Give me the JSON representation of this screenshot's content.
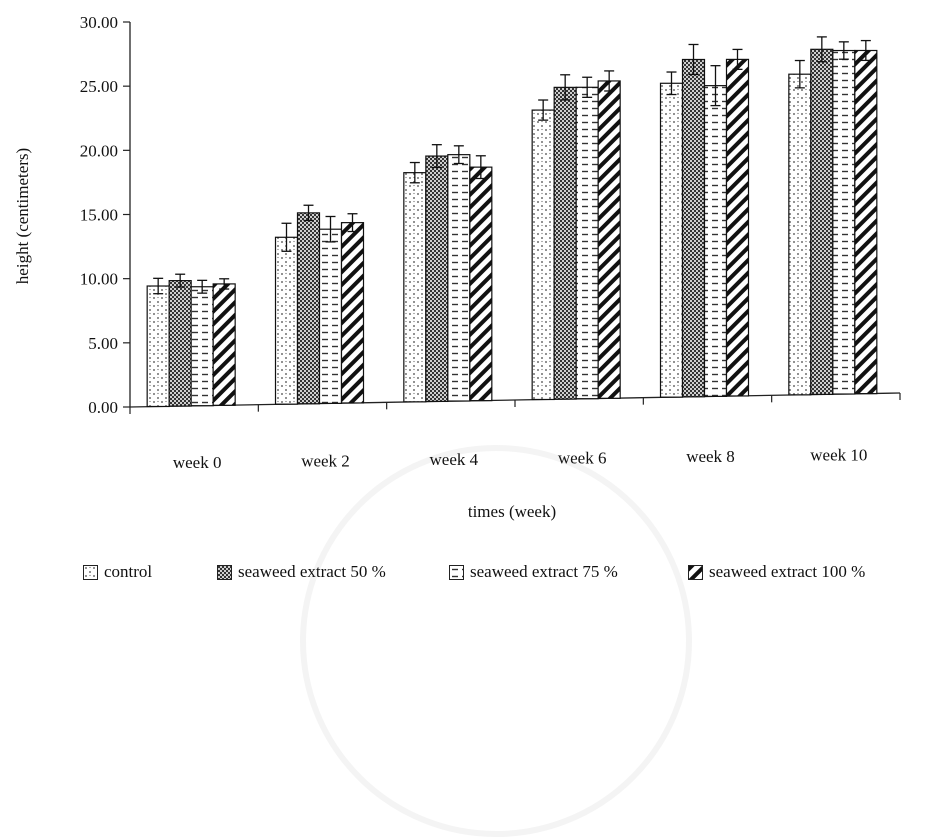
{
  "chart_data": {
    "type": "bar",
    "title": "",
    "xlabel": "times (week)",
    "ylabel": "height (centimeters)",
    "ylim": [
      0,
      30
    ],
    "yticks": [
      "0.00",
      "5.00",
      "10.00",
      "15.00",
      "20.00",
      "25.00",
      "30.00"
    ],
    "categories": [
      "week 0",
      "week 2",
      "week 4",
      "week 6",
      "week 8",
      "week 10"
    ],
    "series": [
      {
        "name": "control",
        "values": [
          9.4,
          13.1,
          18.1,
          23.0,
          25.1,
          25.8
        ],
        "errors": [
          0.6,
          1.1,
          0.8,
          0.8,
          0.9,
          1.1
        ],
        "pattern": "dots",
        "color": "#555555"
      },
      {
        "name": "seaweed extract 50 %",
        "values": [
          9.8,
          15.0,
          19.4,
          24.8,
          27.0,
          27.8
        ],
        "errors": [
          0.5,
          0.6,
          0.9,
          1.0,
          1.2,
          1.0
        ],
        "pattern": "checker",
        "color": "#333333"
      },
      {
        "name": "seaweed extract 75 %",
        "values": [
          9.3,
          13.7,
          19.5,
          24.8,
          24.9,
          27.7
        ],
        "errors": [
          0.5,
          1.0,
          0.7,
          0.8,
          1.6,
          0.7
        ],
        "pattern": "dashes",
        "color": "#333333"
      },
      {
        "name": "seaweed extract 100 %",
        "values": [
          9.5,
          14.2,
          18.5,
          25.3,
          27.0,
          27.7
        ],
        "errors": [
          0.4,
          0.7,
          0.9,
          0.8,
          0.8,
          0.8
        ],
        "pattern": "diagonal",
        "color": "#111111"
      }
    ],
    "grid": false,
    "legend_position": "bottom"
  }
}
